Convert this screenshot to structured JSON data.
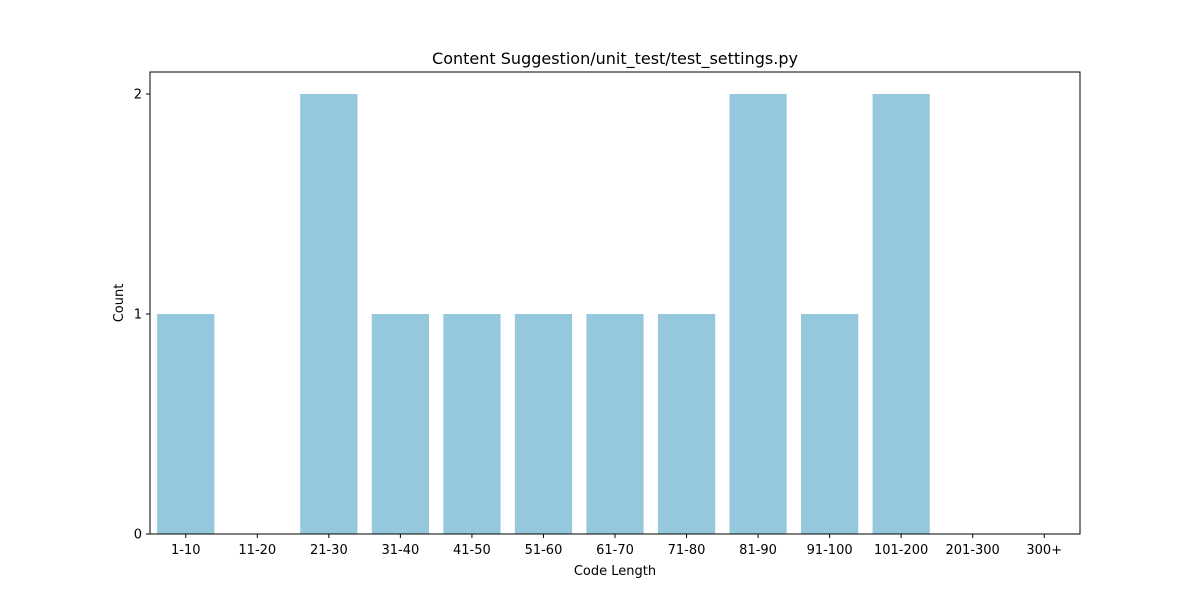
{
  "chart_data": {
    "type": "bar",
    "title": "Content Suggestion/unit_test/test_settings.py",
    "xlabel": "Code Length",
    "ylabel": "Count",
    "categories": [
      "1-10",
      "11-20",
      "21-30",
      "31-40",
      "41-50",
      "51-60",
      "61-70",
      "71-80",
      "81-90",
      "91-100",
      "101-200",
      "201-300",
      "300+"
    ],
    "values": [
      1,
      0,
      2,
      1,
      1,
      1,
      1,
      1,
      2,
      1,
      2,
      0,
      0
    ],
    "ylim": [
      0,
      2.1
    ],
    "yticks": [
      "0",
      "1",
      "2"
    ],
    "grid": false,
    "bar_color": "#96c8dd"
  }
}
